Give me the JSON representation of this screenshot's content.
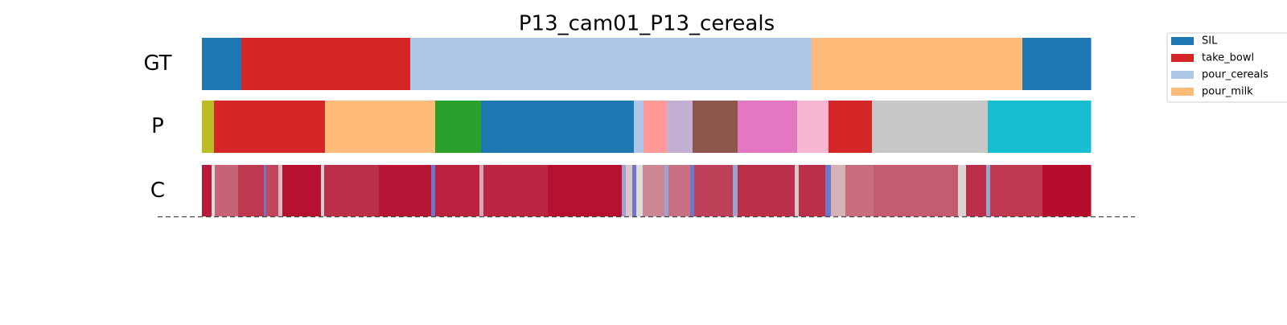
{
  "chart_data": {
    "type": "segmentation",
    "title": "P13_cam01_P13_cereals",
    "xlim": [
      0,
      1105
    ],
    "rows": [
      {
        "label": "GT",
        "segments": [
          {
            "span": [
              0,
              49
            ],
            "color": "#1f77b4"
          },
          {
            "span": [
              49,
              259
            ],
            "color": "#d62728"
          },
          {
            "span": [
              259,
              758
            ],
            "color": "#aec7e8"
          },
          {
            "span": [
              758,
              1020
            ],
            "color": "#ffbb78"
          },
          {
            "span": [
              1020,
              1105
            ],
            "color": "#1f77b4"
          }
        ]
      },
      {
        "label": "P",
        "segments": [
          {
            "span": [
              0,
              15
            ],
            "color": "#bcbd22"
          },
          {
            "span": [
              15,
              153
            ],
            "color": "#d62728"
          },
          {
            "span": [
              153,
              290
            ],
            "color": "#ffbb78"
          },
          {
            "span": [
              290,
              347
            ],
            "color": "#2ca02c"
          },
          {
            "span": [
              347,
              537
            ],
            "color": "#1f77b4"
          },
          {
            "span": [
              537,
              549
            ],
            "color": "#aec7e8"
          },
          {
            "span": [
              549,
              578
            ],
            "color": "#ff9896"
          },
          {
            "span": [
              578,
              610
            ],
            "color": "#c5b0d5"
          },
          {
            "span": [
              610,
              666
            ],
            "color": "#8c564b"
          },
          {
            "span": [
              666,
              740
            ],
            "color": "#e377c2"
          },
          {
            "span": [
              740,
              779
            ],
            "color": "#f7b6d2"
          },
          {
            "span": [
              779,
              833
            ],
            "color": "#d62728"
          },
          {
            "span": [
              833,
              977
            ],
            "color": "#c7c7c7"
          },
          {
            "span": [
              977,
              1105
            ],
            "color": "#17becf"
          }
        ]
      }
    ],
    "confidence_row": {
      "label": "C",
      "runs": [
        {
          "span": [
            0,
            12
          ],
          "value": 0.95
        },
        {
          "span": [
            12,
            16
          ],
          "value": 0.5
        },
        {
          "span": [
            16,
            45
          ],
          "value": 0.78
        },
        {
          "span": [
            45,
            77
          ],
          "value": 0.88
        },
        {
          "span": [
            77,
            80
          ],
          "value": 0.15
        },
        {
          "span": [
            80,
            95
          ],
          "value": 0.85
        },
        {
          "span": [
            95,
            100
          ],
          "value": 0.58
        },
        {
          "span": [
            100,
            148
          ],
          "value": 0.97
        },
        {
          "span": [
            148,
            152
          ],
          "value": 0.45
        },
        {
          "span": [
            152,
            220
          ],
          "value": 0.9
        },
        {
          "span": [
            220,
            285
          ],
          "value": 0.96
        },
        {
          "span": [
            285,
            290
          ],
          "value": 0.15
        },
        {
          "span": [
            290,
            345
          ],
          "value": 0.93
        },
        {
          "span": [
            345,
            350
          ],
          "value": 0.62
        },
        {
          "span": [
            350,
            430
          ],
          "value": 0.92
        },
        {
          "span": [
            430,
            522
          ],
          "value": 0.97
        },
        {
          "span": [
            522,
            527
          ],
          "value": 0.3
        },
        {
          "span": [
            527,
            535
          ],
          "value": 0.55
        },
        {
          "span": [
            535,
            540
          ],
          "value": 0.15
        },
        {
          "span": [
            540,
            548
          ],
          "value": 0.5
        },
        {
          "span": [
            548,
            575
          ],
          "value": 0.7
        },
        {
          "span": [
            575,
            580
          ],
          "value": 0.3
        },
        {
          "span": [
            580,
            607
          ],
          "value": 0.75
        },
        {
          "span": [
            607,
            612
          ],
          "value": 0.15
        },
        {
          "span": [
            612,
            660
          ],
          "value": 0.86
        },
        {
          "span": [
            660,
            666
          ],
          "value": 0.3
        },
        {
          "span": [
            666,
            737
          ],
          "value": 0.9
        },
        {
          "span": [
            737,
            742
          ],
          "value": 0.55
        },
        {
          "span": [
            742,
            775
          ],
          "value": 0.9
        },
        {
          "span": [
            775,
            782
          ],
          "value": 0.15
        },
        {
          "span": [
            782,
            800
          ],
          "value": 0.6
        },
        {
          "span": [
            800,
            835
          ],
          "value": 0.76
        },
        {
          "span": [
            835,
            940
          ],
          "value": 0.8
        },
        {
          "span": [
            940,
            950
          ],
          "value": 0.52
        },
        {
          "span": [
            950,
            975
          ],
          "value": 0.9
        },
        {
          "span": [
            975,
            980
          ],
          "value": 0.3
        },
        {
          "span": [
            980,
            1045
          ],
          "value": 0.88
        },
        {
          "span": [
            1045,
            1105
          ],
          "value": 0.98
        }
      ]
    },
    "legend": [
      {
        "name": "SIL",
        "color": "#1f77b4"
      },
      {
        "name": "take_bowl",
        "color": "#d62728"
      },
      {
        "name": "pour_cereals",
        "color": "#aec7e8"
      },
      {
        "name": "pour_milk",
        "color": "#ffbb78"
      }
    ]
  }
}
